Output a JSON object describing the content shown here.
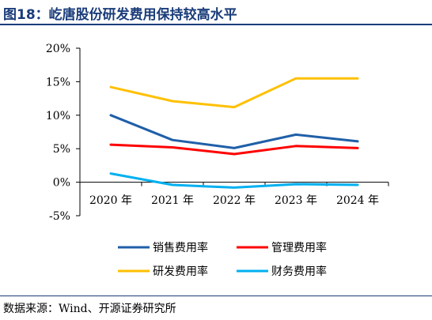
{
  "title": "图18：屹唐股份研发费用保持较高水平",
  "source": "数据来源：Wind、开源证券研究所",
  "chart_data": {
    "type": "line",
    "title": "图18：屹唐股份研发费用保持较高水平",
    "xlabel": "",
    "ylabel": "",
    "categories": [
      "2020 年",
      "2021 年",
      "2022 年",
      "2023 年",
      "2024 年"
    ],
    "y_ticks": [
      "20%",
      "15%",
      "10%",
      "5%",
      "0%",
      "-5%"
    ],
    "ylim": [
      -5,
      20
    ],
    "grid": false,
    "legend_position": "bottom",
    "series": [
      {
        "name": "销售费用率",
        "color": "#1f5fa8",
        "values": [
          10.0,
          6.3,
          5.1,
          7.1,
          6.1
        ]
      },
      {
        "name": "管理费用率",
        "color": "#ff0000",
        "values": [
          5.6,
          5.2,
          4.2,
          5.4,
          5.1
        ]
      },
      {
        "name": "研发费用率",
        "color": "#ffc000",
        "values": [
          14.2,
          12.1,
          11.2,
          15.5,
          15.5
        ]
      },
      {
        "name": "财务费用率",
        "color": "#00b0f0",
        "values": [
          1.3,
          -0.4,
          -0.8,
          -0.3,
          -0.4
        ]
      }
    ]
  }
}
